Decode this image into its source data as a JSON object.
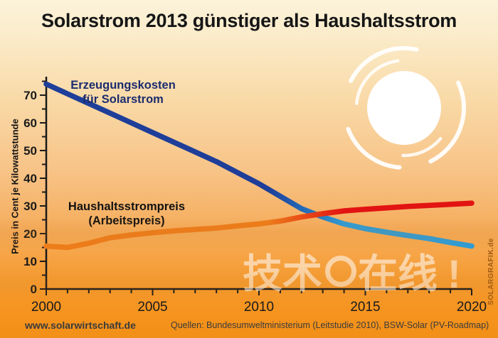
{
  "title": "Solarstrom 2013 günstiger als Haushaltsstrom",
  "labels": {
    "solar": [
      "Erzeugungskosten",
      "für Solarstrom"
    ],
    "household": [
      "Haushaltsstrompreis",
      "(Arbeitspreis)"
    ]
  },
  "watermark": {
    "prefix": "技术",
    "suffix": "在线",
    "bang": "!"
  },
  "credit": "SOLARGRAFIK.de",
  "footer": {
    "site": "www.solarwirtschaft.de",
    "sources": "Quellen: Bundesumweltministerium (Leitstudie 2010), BSW-Solar (PV-Roadmap)"
  },
  "colors": {
    "axis": "#1a1a1a",
    "solar_start": "#1e3e99",
    "solar_end": "#2b9cd9",
    "household_start": "#ee7c1a",
    "household_end": "#e21412",
    "sun": "#ffffff"
  },
  "chart_data": {
    "type": "line",
    "title": "Solarstrom 2013 günstiger als Haushaltsstrom",
    "xlabel": "",
    "ylabel": "Preis in Cent je Kilowattstunde",
    "x": [
      2000,
      2001,
      2002,
      2003,
      2004,
      2005,
      2006,
      2007,
      2008,
      2009,
      2010,
      2011,
      2012,
      2013,
      2014,
      2015,
      2016,
      2017,
      2018,
      2019,
      2020
    ],
    "xlim": [
      2000,
      2020
    ],
    "ylim": [
      0,
      75
    ],
    "x_tick_step_minor": 1,
    "x_tick_step_major": 5,
    "y_tick_step_minor": 5,
    "y_tick_step_major": 10,
    "y_tick_labels": [
      0,
      10,
      20,
      30,
      40,
      50,
      60,
      70
    ],
    "x_tick_labels": [
      2000,
      2005,
      2010,
      2015,
      2020
    ],
    "grid": false,
    "legend_position": "inline-labels",
    "series": [
      {
        "name": "Erzeugungskosten für Solarstrom",
        "color_start": "#1e3e99",
        "color_end": "#2b9cd9",
        "values": [
          74,
          70.5,
          67,
          63.5,
          60,
          56.5,
          53,
          49.5,
          46,
          42,
          38,
          33.5,
          29,
          26,
          23.5,
          21.8,
          20.5,
          19.3,
          18.2,
          16.8,
          15.5
        ]
      },
      {
        "name": "Haushaltsstrompreis (Arbeitspreis)",
        "color_start": "#ee7c1a",
        "color_end": "#e21412",
        "values": [
          15.5,
          15,
          16.5,
          18.5,
          19.5,
          20.3,
          21,
          21.5,
          22,
          22.8,
          23.5,
          24.5,
          26,
          27.2,
          28.2,
          28.8,
          29.3,
          29.8,
          30.2,
          30.6,
          31
        ]
      }
    ],
    "annotation": "crossing of the two lines around 2013 at ~27 ct/kWh"
  }
}
